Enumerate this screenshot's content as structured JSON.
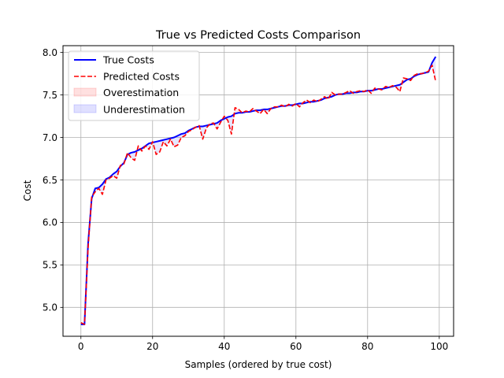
{
  "chart_data": {
    "type": "line",
    "title": "True vs Predicted Costs Comparison",
    "xlabel": "Samples (ordered by true cost)",
    "ylabel": "Cost",
    "xlim": [
      -5,
      104
    ],
    "ylim": [
      4.66,
      8.08
    ],
    "xticks": [
      0,
      20,
      40,
      60,
      80,
      100
    ],
    "yticks": [
      5.0,
      5.5,
      6.0,
      6.5,
      7.0,
      7.5,
      8.0
    ],
    "grid": true,
    "legend_position": "top-left",
    "legend": [
      "True Costs",
      "Predicted Costs",
      "Overestimation",
      "Underestimation"
    ],
    "series": [
      {
        "name": "True Costs",
        "color": "#0000ff",
        "style": "solid",
        "values": [
          4.8,
          4.8,
          5.75,
          6.28,
          6.4,
          6.41,
          6.45,
          6.51,
          6.53,
          6.57,
          6.6,
          6.66,
          6.7,
          6.8,
          6.82,
          6.83,
          6.85,
          6.87,
          6.9,
          6.93,
          6.94,
          6.95,
          6.96,
          6.97,
          6.98,
          6.99,
          7.0,
          7.02,
          7.04,
          7.05,
          7.08,
          7.1,
          7.12,
          7.13,
          7.13,
          7.14,
          7.15,
          7.16,
          7.17,
          7.2,
          7.22,
          7.24,
          7.25,
          7.28,
          7.29,
          7.29,
          7.3,
          7.3,
          7.31,
          7.32,
          7.32,
          7.33,
          7.33,
          7.34,
          7.35,
          7.36,
          7.37,
          7.37,
          7.38,
          7.38,
          7.39,
          7.4,
          7.4,
          7.41,
          7.42,
          7.42,
          7.43,
          7.44,
          7.46,
          7.47,
          7.48,
          7.5,
          7.51,
          7.51,
          7.52,
          7.52,
          7.53,
          7.53,
          7.54,
          7.54,
          7.55,
          7.55,
          7.56,
          7.57,
          7.57,
          7.58,
          7.59,
          7.6,
          7.61,
          7.62,
          7.65,
          7.68,
          7.69,
          7.72,
          7.74,
          7.75,
          7.76,
          7.77,
          7.88,
          7.95
        ]
      },
      {
        "name": "Predicted Costs",
        "color": "#ff0000",
        "style": "dashed",
        "values": [
          4.82,
          4.8,
          5.7,
          6.3,
          6.36,
          6.4,
          6.33,
          6.5,
          6.52,
          6.55,
          6.52,
          6.67,
          6.69,
          6.82,
          6.76,
          6.73,
          6.9,
          6.84,
          6.9,
          6.86,
          6.95,
          6.8,
          6.83,
          6.95,
          6.9,
          6.98,
          6.89,
          6.91,
          7.0,
          7.02,
          7.07,
          7.09,
          7.12,
          7.14,
          6.98,
          7.11,
          7.16,
          7.17,
          7.1,
          7.18,
          7.25,
          7.2,
          7.04,
          7.35,
          7.33,
          7.29,
          7.31,
          7.3,
          7.34,
          7.31,
          7.28,
          7.33,
          7.28,
          7.34,
          7.36,
          7.36,
          7.38,
          7.36,
          7.39,
          7.37,
          7.4,
          7.36,
          7.41,
          7.44,
          7.41,
          7.44,
          7.42,
          7.45,
          7.48,
          7.45,
          7.53,
          7.5,
          7.51,
          7.51,
          7.53,
          7.55,
          7.52,
          7.54,
          7.55,
          7.54,
          7.56,
          7.52,
          7.58,
          7.57,
          7.56,
          7.6,
          7.59,
          7.61,
          7.59,
          7.54,
          7.7,
          7.69,
          7.67,
          7.73,
          7.75,
          7.75,
          7.76,
          7.78,
          7.85,
          7.66
        ]
      }
    ]
  }
}
